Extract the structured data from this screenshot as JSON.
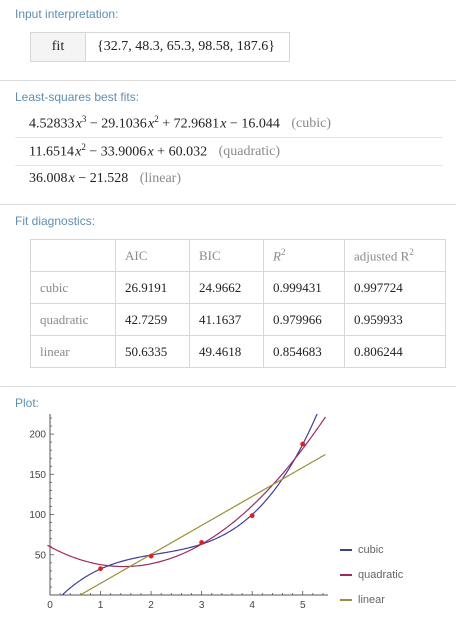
{
  "input_pod": {
    "title": "Input interpretation:",
    "function_label": "fit",
    "argument": "{32.7, 48.3, 65.3, 98.58, 187.6}"
  },
  "fits_pod": {
    "title": "Least-squares best fits:",
    "cubic": {
      "c3": "4.52833",
      "c2": "29.1036",
      "c1": "72.9681",
      "c0": "16.044",
      "tag": "(cubic)"
    },
    "quadratic": {
      "c2": "11.6514",
      "c1": "33.9006",
      "c0": "60.032",
      "tag": "(quadratic)"
    },
    "linear": {
      "c1": "36.008",
      "c0": "21.528",
      "tag": "(linear)"
    }
  },
  "diagnostics_pod": {
    "title": "Fit diagnostics:",
    "headers": [
      "AIC",
      "BIC",
      "R",
      "adjusted R"
    ],
    "rows": [
      {
        "name": "cubic",
        "aic": "26.9191",
        "bic": "24.9662",
        "r2": "0.999431",
        "adj_r2": "0.997724"
      },
      {
        "name": "quadratic",
        "aic": "42.7259",
        "bic": "41.1637",
        "r2": "0.979966",
        "adj_r2": "0.959933"
      },
      {
        "name": "linear",
        "aic": "50.6335",
        "bic": "49.4618",
        "r2": "0.854683",
        "adj_r2": "0.806244"
      }
    ]
  },
  "plot_pod": {
    "title": "Plot:",
    "legend": [
      "cubic",
      "quadratic",
      "linear"
    ]
  },
  "colors": {
    "cubic": "#3d3f9a",
    "quadratic": "#9c2b63",
    "linear": "#9a8f36",
    "points": "#e0201b",
    "pod_title": "#5f8fb0"
  },
  "chart_data": {
    "type": "scatter",
    "points": {
      "x": [
        1,
        2,
        3,
        4,
        5
      ],
      "y": [
        32.7,
        48.3,
        65.3,
        98.58,
        187.6
      ]
    },
    "series": [
      {
        "name": "cubic",
        "coeffs": [
          -16.044,
          72.9681,
          -29.1036,
          4.52833
        ]
      },
      {
        "name": "quadratic",
        "coeffs": [
          60.032,
          -33.9006,
          11.6514
        ]
      },
      {
        "name": "linear",
        "coeffs": [
          -21.528,
          36.008
        ]
      }
    ],
    "x_ticks": [
      "0",
      "1",
      "2",
      "3",
      "4",
      "5"
    ],
    "y_ticks": [
      "50",
      "100",
      "150",
      "200"
    ],
    "xlim": [
      0,
      5.5
    ],
    "ylim": [
      0,
      220
    ]
  }
}
